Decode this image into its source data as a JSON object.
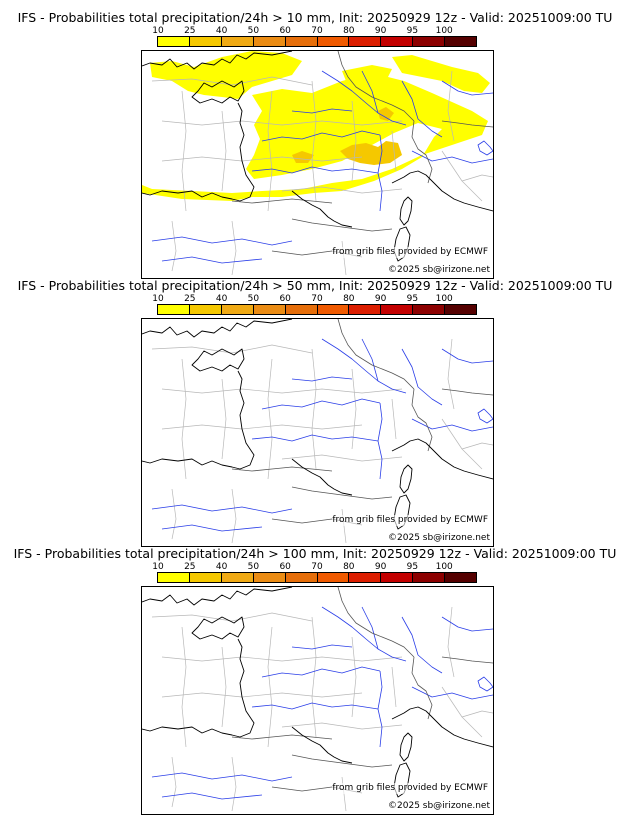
{
  "colorbar": {
    "labels": [
      "10",
      "25",
      "40",
      "50",
      "60",
      "70",
      "80",
      "90",
      "95",
      "100"
    ],
    "colors": [
      "#ffff00",
      "#f5c800",
      "#f0aa14",
      "#eb8c14",
      "#e66e0a",
      "#f05a00",
      "#dc1e00",
      "#c30000",
      "#8c0000",
      "#550000"
    ]
  },
  "panels": [
    {
      "title": "IFS - Probabilities total precipitation/24h > 10 mm, Init: 20250929 12z - Valid: 20251009:00 TU",
      "source_credit": "from grib files provided by ECMWF",
      "copyright": "©2025 sb@irizone.net",
      "has_precip": true
    },
    {
      "title": "IFS - Probabilities total precipitation/24h > 50 mm, Init: 20250929 12z - Valid: 20251009:00 TU",
      "source_credit": "from grib files provided by ECMWF",
      "copyright": "©2025 sb@irizone.net",
      "has_precip": false
    },
    {
      "title": "IFS - Probabilities total precipitation/24h > 100 mm, Init: 20250929 12z - Valid: 20251009:00 TU",
      "source_credit": "from grib files provided by ECMWF",
      "copyright": "©2025 sb@irizone.net",
      "has_precip": false
    }
  ]
}
